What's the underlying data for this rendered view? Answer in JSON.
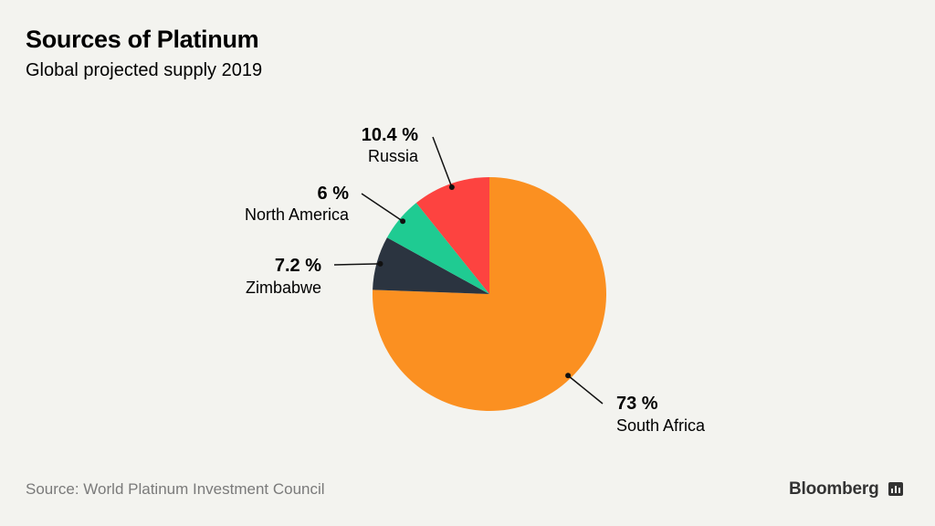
{
  "chart_data": {
    "type": "pie",
    "title": "Sources of Platinum",
    "subtitle": "Global projected supply 2019",
    "start_angle": "12 o'clock, clockwise",
    "slices": [
      {
        "label": "South Africa",
        "value": 73,
        "display": "73 %",
        "color": "#fb9021"
      },
      {
        "label": "Zimbabwe",
        "value": 7.2,
        "display": "7.2 %",
        "color": "#2b3440"
      },
      {
        "label": "North America",
        "value": 6,
        "display": "6 %",
        "color": "#1fcb92"
      },
      {
        "label": "Russia",
        "value": 10.4,
        "display": "10.4 %",
        "color": "#fd4340"
      }
    ]
  },
  "footer": {
    "source": "Source: World Platinum Investment Council",
    "brand": "Bloomberg"
  }
}
